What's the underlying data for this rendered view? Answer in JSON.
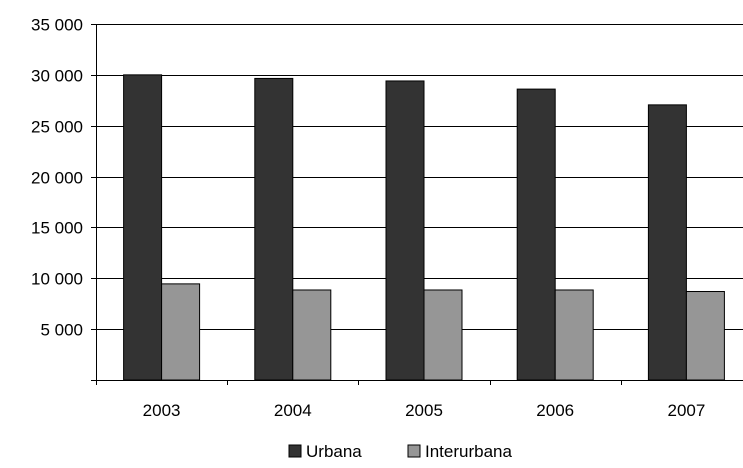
{
  "chart_data": {
    "type": "bar",
    "title": "",
    "xlabel": "",
    "ylabel": "",
    "categories": [
      "2003",
      "2004",
      "2005",
      "2006",
      "2007"
    ],
    "series": [
      {
        "name": "Urbana",
        "values": [
          30000,
          29650,
          29400,
          28600,
          27050
        ],
        "color": "#333333"
      },
      {
        "name": "Interurbana",
        "values": [
          9450,
          8850,
          8850,
          8850,
          8700
        ],
        "color": "#969696"
      }
    ],
    "ylim": [
      0,
      35000
    ],
    "yticks": [
      0,
      5000,
      10000,
      15000,
      20000,
      25000,
      30000,
      35000
    ],
    "ytick_labels": [
      "",
      "5 000",
      "10 000",
      "15 000",
      "20 000",
      "25 000",
      "30 000",
      "35 000"
    ],
    "grid": true,
    "legend_position": "bottom"
  }
}
